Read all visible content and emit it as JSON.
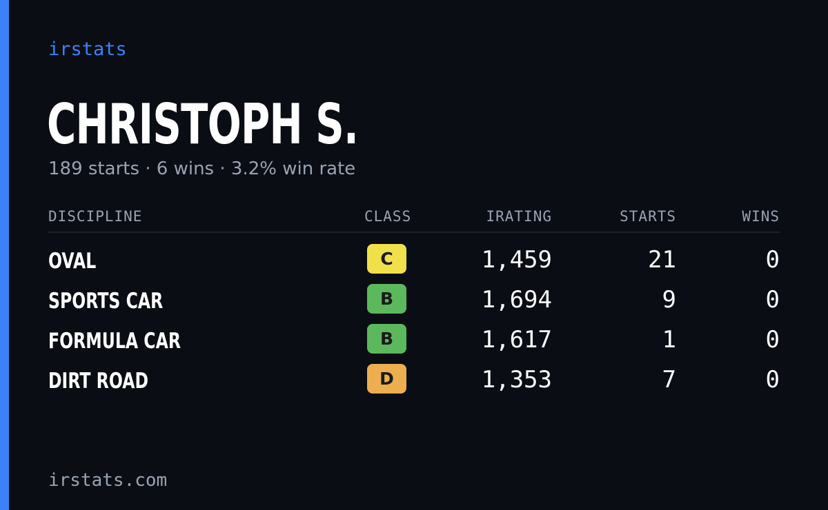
{
  "brand": "irstats",
  "driver": {
    "name": "CHRISTOPH S.",
    "summary": "189 starts · 6 wins · 3.2% win rate"
  },
  "table": {
    "headers": {
      "discipline": "DISCIPLINE",
      "class": "CLASS",
      "irating": "IRATING",
      "starts": "STARTS",
      "wins": "WINS"
    },
    "rows": [
      {
        "discipline": "OVAL",
        "class": "C",
        "class_color": "#f0e04a",
        "irating": "1,459",
        "starts": "21",
        "wins": "0"
      },
      {
        "discipline": "SPORTS CAR",
        "class": "B",
        "class_color": "#5cb85c",
        "irating": "1,694",
        "starts": "9",
        "wins": "0"
      },
      {
        "discipline": "FORMULA CAR",
        "class": "B",
        "class_color": "#5cb85c",
        "irating": "1,617",
        "starts": "1",
        "wins": "0"
      },
      {
        "discipline": "DIRT ROAD",
        "class": "D",
        "class_color": "#ecae4f",
        "irating": "1,353",
        "starts": "7",
        "wins": "0"
      }
    ]
  },
  "footer": "irstats.com",
  "colors": {
    "accent": "#3b82f6",
    "background": "#0a0d14",
    "muted_text": "#9aa3b2"
  }
}
